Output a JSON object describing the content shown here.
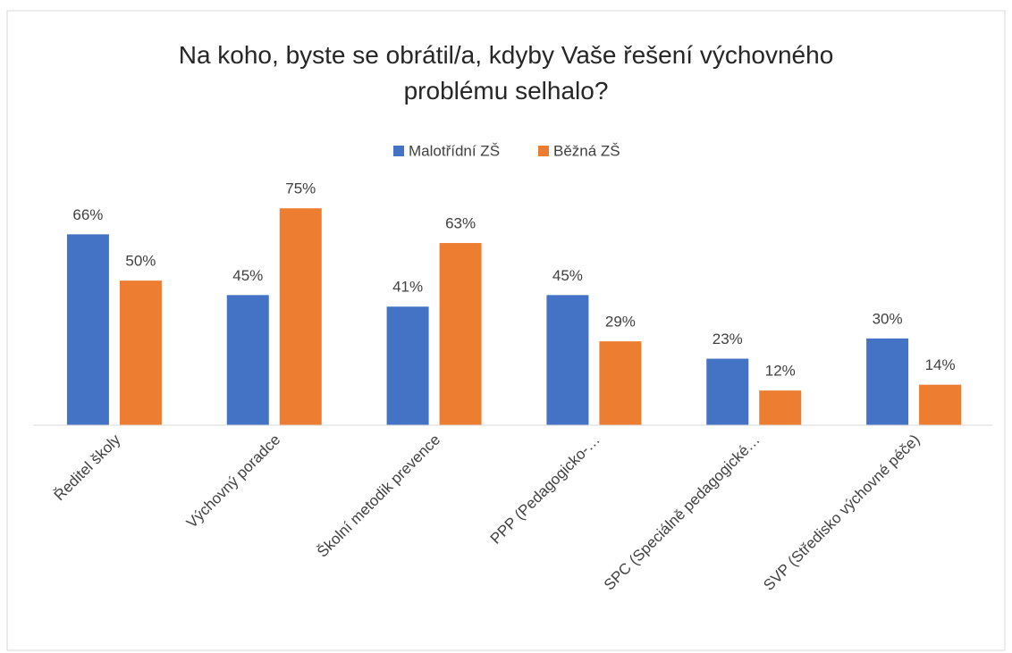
{
  "chart_data": {
    "type": "bar",
    "title": "Na koho, byste se obrátil/a, kdyby Vaše řešení výchovného problému selhalo?",
    "categories": [
      "Ředitel školy",
      "Výchovný poradce",
      "Školní metodik prevence",
      "PPP (Pedagogicko-…",
      "SPC (Speciálně pedagogické…",
      "SVP (Středisko výchovné péče)"
    ],
    "series": [
      {
        "name": "Malotřídní ZŠ",
        "color": "#4472c4",
        "values": [
          66,
          45,
          41,
          45,
          23,
          30
        ],
        "value_labels": [
          "66%",
          "45%",
          "41%",
          "45%",
          "23%",
          "30%"
        ]
      },
      {
        "name": "Běžná ZŠ",
        "color": "#ed7d31",
        "values": [
          50,
          75,
          63,
          29,
          12,
          14
        ],
        "value_labels": [
          "50%",
          "75%",
          "63%",
          "29%",
          "12%",
          "14%"
        ]
      }
    ],
    "ylim": [
      0,
      80
    ],
    "legend": "top"
  }
}
